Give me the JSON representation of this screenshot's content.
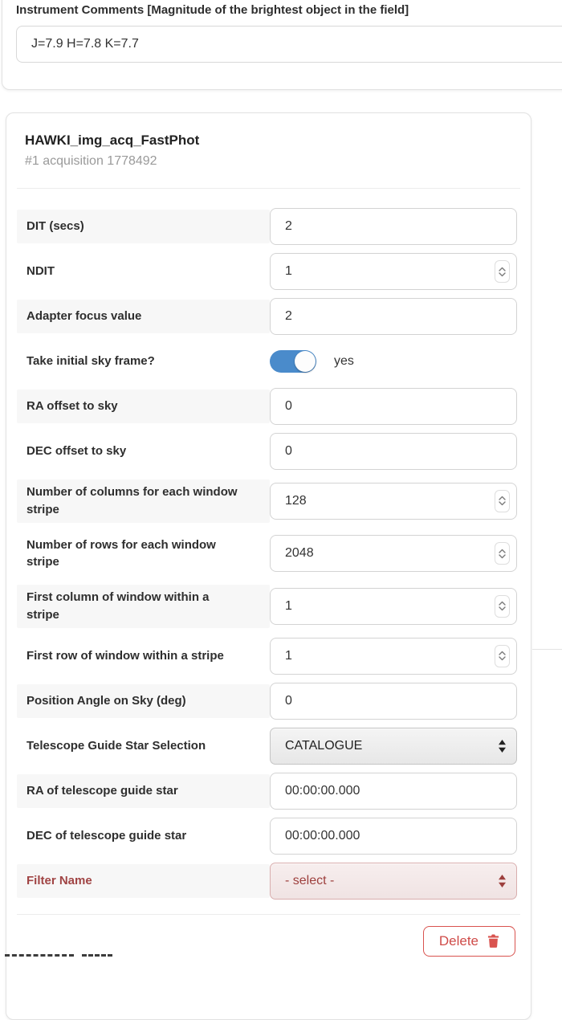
{
  "instrument_comments": {
    "label": "Instrument Comments [Magnitude of the brightest object in the field]",
    "value": "J=7.9 H=7.8 K=7.7"
  },
  "template": {
    "title": "HAWKI_img_acq_FastPhot",
    "subtitle": "#1 acquisition 1778492",
    "params": [
      {
        "label": "DIT (secs)",
        "value": "2",
        "control": "text",
        "striped": true
      },
      {
        "label": "NDIT",
        "value": "1",
        "control": "number",
        "striped": false
      },
      {
        "label": "Adapter focus value",
        "value": "2",
        "control": "text",
        "striped": true
      },
      {
        "label": "Take initial sky frame?",
        "value": "yes",
        "control": "toggle",
        "toggle_state": "on",
        "striped": false
      },
      {
        "label": "RA offset to sky",
        "value": "0",
        "control": "text",
        "striped": true
      },
      {
        "label": "DEC offset to sky",
        "value": "0",
        "control": "text",
        "striped": false
      },
      {
        "label": "Number of columns for each window stripe",
        "value": "128",
        "control": "number",
        "striped": true
      },
      {
        "label": "Number of rows for each window stripe",
        "value": "2048",
        "control": "number",
        "striped": false
      },
      {
        "label": "First column of window within a stripe",
        "value": "1",
        "control": "number",
        "striped": true
      },
      {
        "label": "First row of window within a stripe",
        "value": "1",
        "control": "number",
        "striped": false
      },
      {
        "label": "Position Angle on Sky (deg)",
        "value": "0",
        "control": "text",
        "striped": true
      },
      {
        "label": "Telescope Guide Star Selection",
        "value": "CATALOGUE",
        "control": "select",
        "striped": false
      },
      {
        "label": "RA of telescope guide star",
        "value": "00:00:00.000",
        "control": "text",
        "striped": true
      },
      {
        "label": "DEC of telescope guide star",
        "value": "00:00:00.000",
        "control": "text",
        "striped": false
      },
      {
        "label": "Filter Name",
        "value": "- select -",
        "control": "select",
        "invalid": true,
        "striped": true
      }
    ],
    "delete_button": "Delete"
  },
  "colors": {
    "toggle_on": "#4a8bcb",
    "invalid_text": "#a04444",
    "danger": "#d9534f",
    "row_stripe": "#f7f7f7"
  }
}
